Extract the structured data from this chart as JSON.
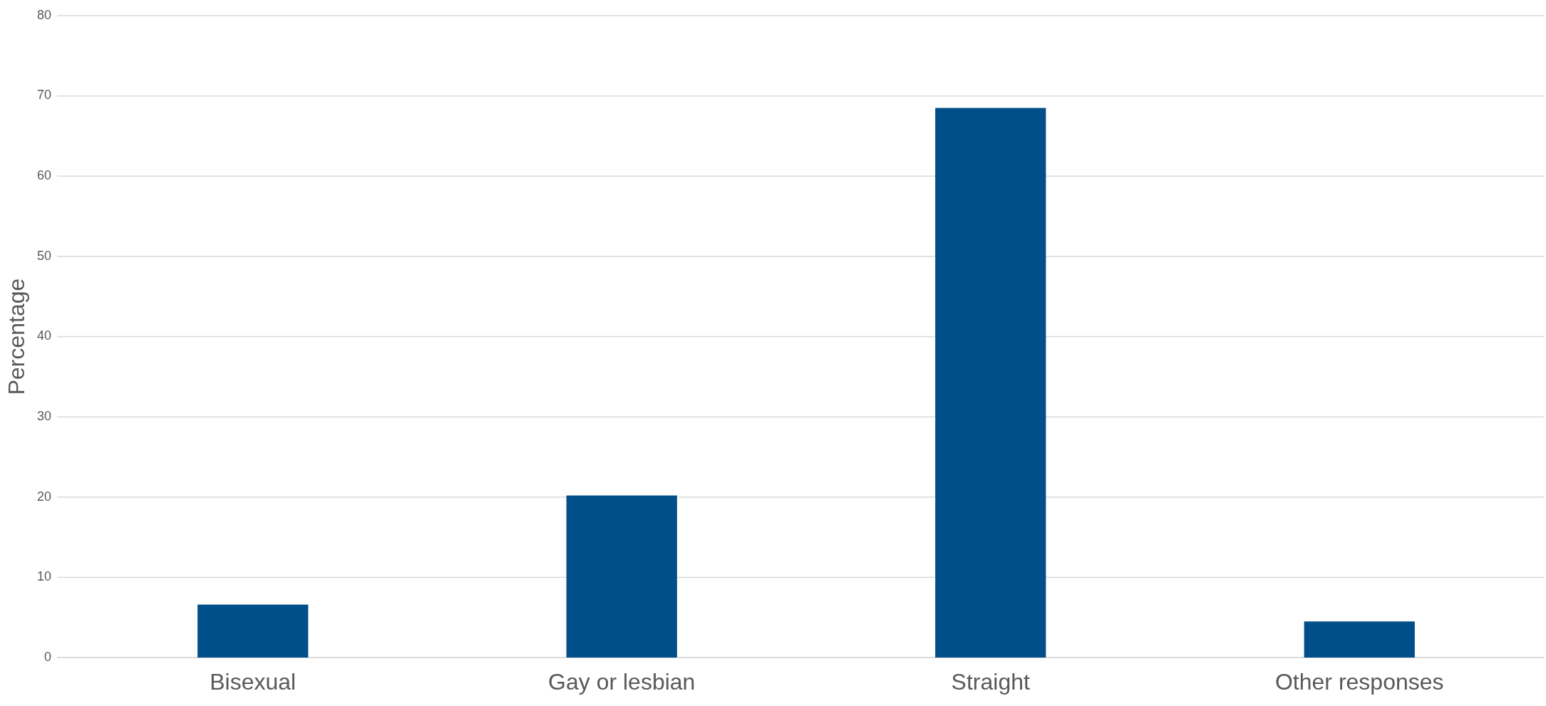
{
  "chart_data": {
    "type": "bar",
    "ylabel": "Percentage",
    "categories": [
      "Bisexual",
      "Gay or lesbian",
      "Straight",
      "Other responses"
    ],
    "values": [
      6.6,
      20.2,
      68.5,
      4.5
    ],
    "color": "#004f8a",
    "ylim": [
      0,
      80
    ],
    "yticks": [
      0,
      10,
      20,
      30,
      40,
      50,
      60,
      70,
      80
    ],
    "grid": "y"
  }
}
